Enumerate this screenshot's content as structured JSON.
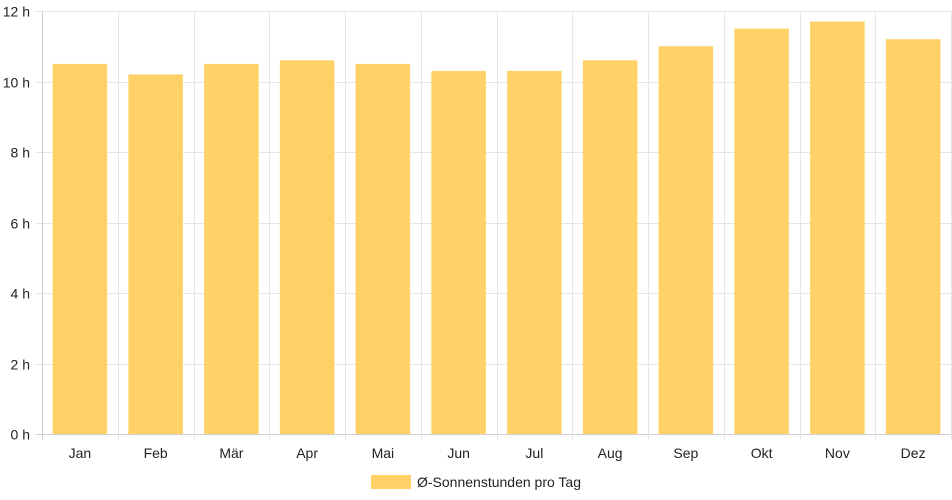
{
  "chart_data": {
    "type": "bar",
    "categories": [
      "Jan",
      "Feb",
      "Mär",
      "Apr",
      "Mai",
      "Jun",
      "Jul",
      "Aug",
      "Sep",
      "Okt",
      "Nov",
      "Dez"
    ],
    "series": [
      {
        "name": "Ø-Sonnenstunden pro Tag",
        "values": [
          10.5,
          10.2,
          10.5,
          10.6,
          10.5,
          10.3,
          10.3,
          10.6,
          11.0,
          11.5,
          11.7,
          11.2
        ],
        "color": "#ffd166"
      }
    ],
    "ylim": [
      0,
      12
    ],
    "yticks": [
      0,
      2,
      4,
      6,
      8,
      10,
      12
    ],
    "ytick_labels": [
      "0 h",
      "2 h",
      "4 h",
      "6 h",
      "8 h",
      "10 h",
      "12 h"
    ],
    "grid": true,
    "legend_position": "bottom"
  }
}
